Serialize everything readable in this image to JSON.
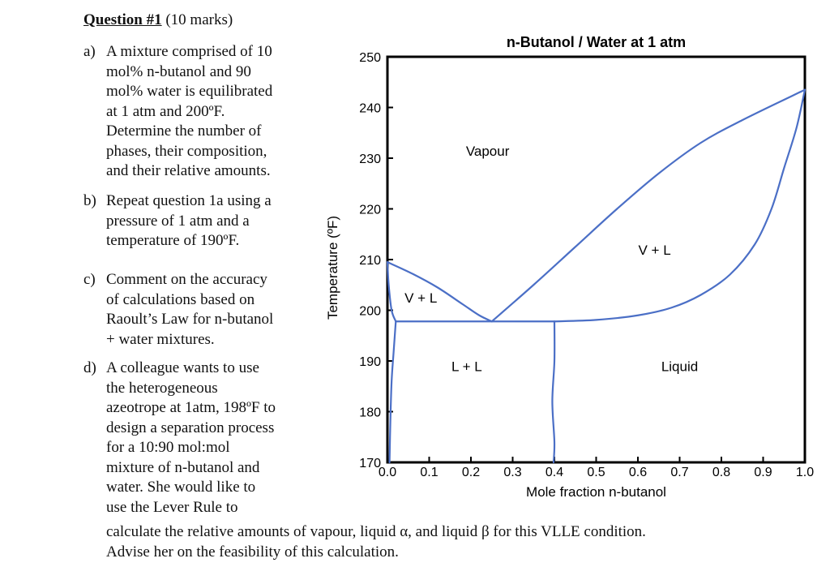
{
  "question": {
    "title": "Question #1",
    "marks": " (10 marks)",
    "parts": [
      {
        "label": "a)",
        "lines": [
          "A mixture comprised of 10",
          "mol% n-butanol and 90",
          "mol% water is equilibrated",
          "at 1 atm and 200ºF.",
          "Determine the number of",
          "phases, their composition,",
          "and their relative amounts."
        ]
      },
      {
        "label": "b)",
        "lines": [
          "Repeat question 1a using a",
          "pressure of 1 atm and a",
          "temperature of 190ºF."
        ]
      },
      {
        "label": "c)",
        "lines": [
          "Comment on the accuracy",
          "of calculations based on",
          "Raoult’s Law for n-butanol",
          "+ water mixtures."
        ]
      },
      {
        "label": "d)",
        "lines": [
          "A colleague wants to use",
          "the heterogeneous",
          "azeotrope at 1atm, 198ºF to",
          "design a separation process",
          "for a 10:90 mol:mol",
          "mixture of n-butanol and",
          "water.  She would like to",
          "use the Lever Rule to"
        ]
      }
    ],
    "tail_lines": [
      "calculate the relative amounts of vapour, liquid α, and liquid β for this VLLE condition.",
      "Advise her on the feasibility of this calculation."
    ]
  },
  "chart_data": {
    "type": "line",
    "title": "n-Butanol / Water at 1 atm",
    "xlabel": "Mole fraction n-butanol",
    "ylabel": "Temperature (ºF)",
    "xlim": [
      0.0,
      1.0
    ],
    "ylim": [
      170,
      250
    ],
    "x_ticks": [
      "0.0",
      "0.1",
      "0.2",
      "0.3",
      "0.4",
      "0.5",
      "0.6",
      "0.7",
      "0.8",
      "0.9",
      "1.0"
    ],
    "y_ticks": [
      "170",
      "180",
      "190",
      "200",
      "210",
      "220",
      "230",
      "240",
      "250"
    ],
    "line_color": "#4b6fc6",
    "region_labels": [
      {
        "text": "Vapour",
        "x": 0.24,
        "y": 230.5
      },
      {
        "text": "V + L",
        "x": 0.64,
        "y": 211
      },
      {
        "text": "V + L",
        "x": 0.08,
        "y": 201.5
      },
      {
        "text": "L + L",
        "x": 0.19,
        "y": 188
      },
      {
        "text": "Liquid",
        "x": 0.7,
        "y": 188
      }
    ],
    "curves": {
      "dew_left": [
        [
          0.0,
          209.5
        ],
        [
          0.06,
          207.2
        ],
        [
          0.12,
          204.5
        ],
        [
          0.18,
          201.2
        ],
        [
          0.22,
          199
        ],
        [
          0.25,
          197.8
        ]
      ],
      "dew_right": [
        [
          0.25,
          197.8
        ],
        [
          0.35,
          205
        ],
        [
          0.45,
          212.5
        ],
        [
          0.55,
          220
        ],
        [
          0.65,
          227
        ],
        [
          0.75,
          233
        ],
        [
          0.85,
          237.5
        ],
        [
          1.0,
          243.5
        ]
      ],
      "bubble_right": [
        [
          0.4,
          197.8
        ],
        [
          0.5,
          198.1
        ],
        [
          0.6,
          199
        ],
        [
          0.68,
          200.5
        ],
        [
          0.75,
          203
        ],
        [
          0.82,
          207
        ],
        [
          0.88,
          213
        ],
        [
          0.92,
          220
        ],
        [
          0.95,
          228
        ],
        [
          0.98,
          236
        ],
        [
          1.0,
          243.5
        ]
      ],
      "bubble_left": [
        [
          0.0,
          209.5
        ],
        [
          0.003,
          205
        ],
        [
          0.01,
          200
        ],
        [
          0.02,
          197.8
        ]
      ],
      "three_phase_line": [
        [
          0.02,
          197.8
        ],
        [
          0.4,
          197.8
        ]
      ],
      "solubility_left": [
        [
          0.02,
          197.8
        ],
        [
          0.015,
          192
        ],
        [
          0.01,
          186
        ],
        [
          0.007,
          178
        ],
        [
          0.005,
          170
        ]
      ],
      "solubility_right": [
        [
          0.4,
          197.8
        ],
        [
          0.4,
          190
        ],
        [
          0.395,
          182
        ],
        [
          0.4,
          174
        ],
        [
          0.398,
          170
        ]
      ]
    }
  }
}
